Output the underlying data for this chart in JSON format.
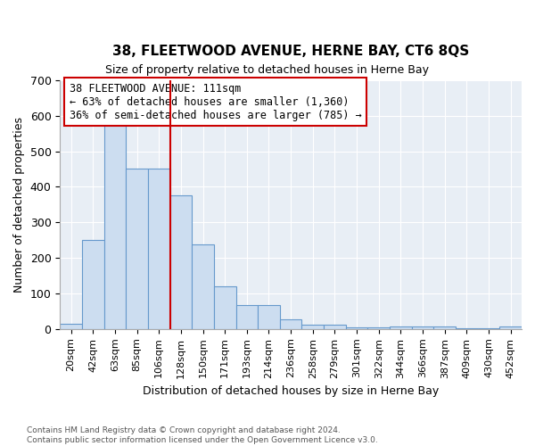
{
  "title": "38, FLEETWOOD AVENUE, HERNE BAY, CT6 8QS",
  "subtitle": "Size of property relative to detached houses in Herne Bay",
  "xlabel": "Distribution of detached houses by size in Herne Bay",
  "ylabel": "Number of detached properties",
  "categories": [
    "20sqm",
    "42sqm",
    "63sqm",
    "85sqm",
    "106sqm",
    "128sqm",
    "150sqm",
    "171sqm",
    "193sqm",
    "214sqm",
    "236sqm",
    "258sqm",
    "279sqm",
    "301sqm",
    "322sqm",
    "344sqm",
    "366sqm",
    "387sqm",
    "409sqm",
    "430sqm",
    "452sqm"
  ],
  "values": [
    15,
    250,
    590,
    450,
    450,
    375,
    238,
    120,
    68,
    68,
    28,
    12,
    12,
    5,
    5,
    8,
    8,
    8,
    2,
    2,
    8
  ],
  "bar_color": "#ccddf0",
  "bar_edge_color": "#6699cc",
  "vline_x": 4.5,
  "vline_color": "#cc0000",
  "annotation_text": "38 FLEETWOOD AVENUE: 111sqm\n← 63% of detached houses are smaller (1,360)\n36% of semi-detached houses are larger (785) →",
  "annotation_box_color": "white",
  "annotation_box_edge": "#cc0000",
  "ylim": [
    0,
    700
  ],
  "yticks": [
    0,
    100,
    200,
    300,
    400,
    500,
    600,
    700
  ],
  "footnote": "Contains HM Land Registry data © Crown copyright and database right 2024.\nContains public sector information licensed under the Open Government Licence v3.0.",
  "fig_bg_color": "#ffffff",
  "plot_bg_color": "#e8eef5"
}
